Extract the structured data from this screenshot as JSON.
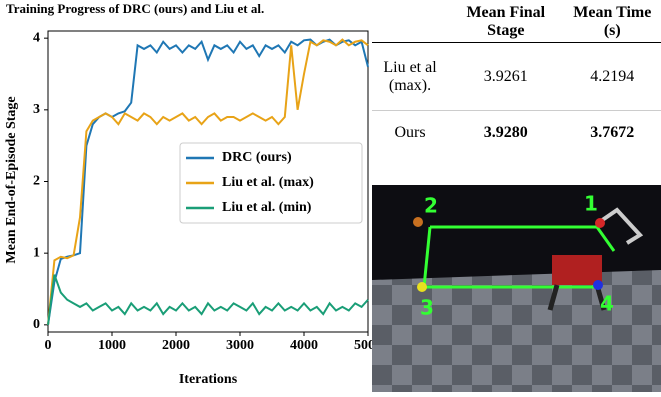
{
  "chart_data": {
    "type": "line",
    "title": "Training Progress of DRC (ours) and Liu et al.",
    "x_label": "Iterations",
    "y_label": "Mean End-of-Episode Stage",
    "x": [
      0,
      100,
      200,
      300,
      400,
      500,
      600,
      700,
      800,
      900,
      1000,
      1100,
      1200,
      1300,
      1400,
      1500,
      1600,
      1700,
      1800,
      1900,
      2000,
      2100,
      2200,
      2300,
      2400,
      2500,
      2600,
      2700,
      2800,
      2900,
      3000,
      3100,
      3200,
      3300,
      3400,
      3500,
      3600,
      3700,
      3800,
      3900,
      4000,
      4100,
      4200,
      4300,
      4400,
      4500,
      4600,
      4700,
      4800,
      4900,
      5000
    ],
    "series": [
      {
        "name": "DRC (ours)",
        "color": "#1f77b4",
        "values": [
          0,
          0.6,
          0.92,
          0.95,
          0.97,
          1.0,
          2.5,
          2.8,
          2.9,
          2.95,
          2.9,
          2.95,
          2.98,
          3.1,
          3.9,
          3.85,
          3.9,
          3.8,
          3.95,
          3.85,
          3.9,
          3.8,
          3.9,
          3.85,
          3.95,
          3.7,
          3.9,
          3.85,
          3.9,
          3.8,
          3.95,
          3.85,
          3.9,
          3.75,
          3.9,
          3.85,
          3.9,
          3.8,
          3.95,
          3.9,
          3.97,
          3.98,
          3.9,
          3.95,
          3.98,
          3.9,
          3.95,
          3.97,
          3.9,
          3.95,
          3.6
        ]
      },
      {
        "name": "Liu et al. (max)",
        "color": "#e8a317",
        "values": [
          0,
          0.9,
          0.95,
          0.93,
          0.97,
          1.5,
          2.7,
          2.85,
          2.9,
          2.95,
          2.9,
          2.8,
          2.95,
          2.9,
          2.85,
          2.95,
          2.9,
          2.8,
          2.9,
          2.85,
          2.9,
          2.95,
          2.85,
          2.9,
          2.8,
          2.9,
          2.95,
          2.85,
          2.9,
          2.9,
          2.85,
          2.9,
          2.95,
          2.9,
          2.85,
          2.9,
          2.8,
          2.9,
          3.9,
          3.0,
          3.5,
          3.95,
          3.9,
          3.97,
          3.95,
          3.9,
          3.98,
          3.9,
          3.95,
          3.97,
          3.9
        ]
      },
      {
        "name": "Liu et al. (min)",
        "color": "#1a9e77",
        "values": [
          0,
          0.7,
          0.45,
          0.35,
          0.3,
          0.25,
          0.3,
          0.2,
          0.25,
          0.3,
          0.2,
          0.25,
          0.15,
          0.3,
          0.2,
          0.25,
          0.2,
          0.3,
          0.15,
          0.25,
          0.2,
          0.3,
          0.2,
          0.25,
          0.15,
          0.3,
          0.2,
          0.25,
          0.2,
          0.3,
          0.25,
          0.2,
          0.3,
          0.15,
          0.25,
          0.2,
          0.3,
          0.2,
          0.25,
          0.2,
          0.3,
          0.2,
          0.25,
          0.15,
          0.3,
          0.2,
          0.25,
          0.2,
          0.3,
          0.25,
          0.35
        ]
      }
    ],
    "xlim": [
      0,
      5000
    ],
    "xticks": [
      0,
      1000,
      2000,
      3000,
      4000,
      5000
    ],
    "ylim": [
      -0.1,
      4.1
    ],
    "yticks": [
      0,
      1,
      2,
      3,
      4
    ],
    "legend": "center right",
    "grid": false
  },
  "table": {
    "headers": [
      "Mean Final Stage",
      "Mean Time (s)"
    ],
    "rows": [
      [
        "Liu et al (max).",
        "3.9261",
        "4.2194"
      ],
      [
        "Ours",
        "3.9280",
        "3.7672"
      ]
    ]
  },
  "image": {
    "labels": [
      "1",
      "2",
      "3",
      "4"
    ]
  }
}
